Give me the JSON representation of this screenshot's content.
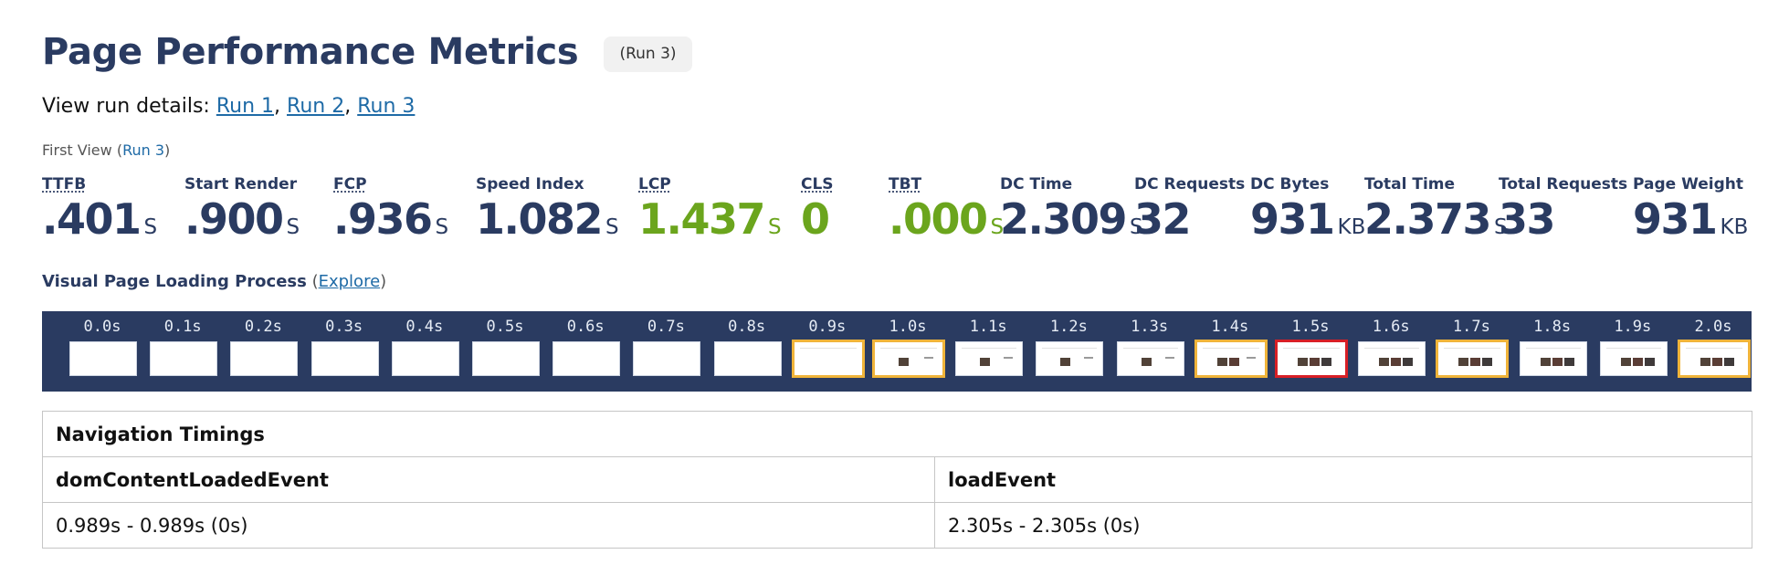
{
  "header": {
    "title": "Page Performance Metrics",
    "run_badge": "(Run 3)"
  },
  "run_details": {
    "prefix": "View run details: ",
    "links": [
      "Run 1",
      "Run 2",
      "Run 3"
    ],
    "separator": ", "
  },
  "first_view": {
    "prefix": "First View (",
    "link": "Run 3",
    "suffix": ")"
  },
  "metrics": [
    {
      "label": "TTFB",
      "value": ".401",
      "unit": "S"
    },
    {
      "label": "Start Render",
      "value": ".900",
      "unit": "S"
    },
    {
      "label": "FCP",
      "value": ".936",
      "unit": "S"
    },
    {
      "label": "Speed Index",
      "value": "1.082",
      "unit": "S"
    },
    {
      "label": "LCP",
      "value": "1.437",
      "unit": "S"
    },
    {
      "label": "CLS",
      "value": "0",
      "unit": ""
    },
    {
      "label": "TBT",
      "value": ".000",
      "unit": "S"
    },
    {
      "label": "DC Time",
      "value": "2.309",
      "unit": "S"
    },
    {
      "label": "DC Requests",
      "value": "32",
      "unit": ""
    },
    {
      "label": "DC Bytes",
      "value": "931",
      "unit": "KB"
    },
    {
      "label": "Total Time",
      "value": "2.373",
      "unit": "S"
    },
    {
      "label": "Total Requests",
      "value": "33",
      "unit": ""
    },
    {
      "label": "Page Weight",
      "value": "931",
      "unit": "KB"
    }
  ],
  "colors": {
    "primary": "#2a3b61",
    "good": "#6ba51d",
    "link": "#1e6aa6",
    "frame_changed": "#f0b43a",
    "frame_lcp": "#d81f26"
  },
  "visual_loading": {
    "title": "Visual Page Loading Process",
    "open_paren": " (",
    "link": "Explore",
    "close_paren": ")"
  },
  "filmstrip": [
    {
      "time": "0.0s",
      "state": "blank"
    },
    {
      "time": "0.1s",
      "state": "blank"
    },
    {
      "time": "0.2s",
      "state": "blank"
    },
    {
      "time": "0.3s",
      "state": "blank"
    },
    {
      "time": "0.4s",
      "state": "blank"
    },
    {
      "time": "0.5s",
      "state": "blank"
    },
    {
      "time": "0.6s",
      "state": "blank"
    },
    {
      "time": "0.7s",
      "state": "blank"
    },
    {
      "time": "0.8s",
      "state": "blank"
    },
    {
      "time": "0.9s",
      "state": "line",
      "highlight": "yellow"
    },
    {
      "time": "1.0s",
      "state": "one",
      "highlight": "yellow"
    },
    {
      "time": "1.1s",
      "state": "one"
    },
    {
      "time": "1.2s",
      "state": "one"
    },
    {
      "time": "1.3s",
      "state": "one"
    },
    {
      "time": "1.4s",
      "state": "two",
      "highlight": "yellow"
    },
    {
      "time": "1.5s",
      "state": "three",
      "highlight": "red"
    },
    {
      "time": "1.6s",
      "state": "three"
    },
    {
      "time": "1.7s",
      "state": "three",
      "highlight": "yellow"
    },
    {
      "time": "1.8s",
      "state": "three"
    },
    {
      "time": "1.9s",
      "state": "three"
    },
    {
      "time": "2.0s",
      "state": "three",
      "highlight": "yellow"
    }
  ],
  "navigation_timings": {
    "title": "Navigation Timings",
    "columns": [
      "domContentLoadedEvent",
      "loadEvent"
    ],
    "values": [
      "0.989s - 0.989s (0s)",
      "2.305s - 2.305s (0s)"
    ]
  }
}
